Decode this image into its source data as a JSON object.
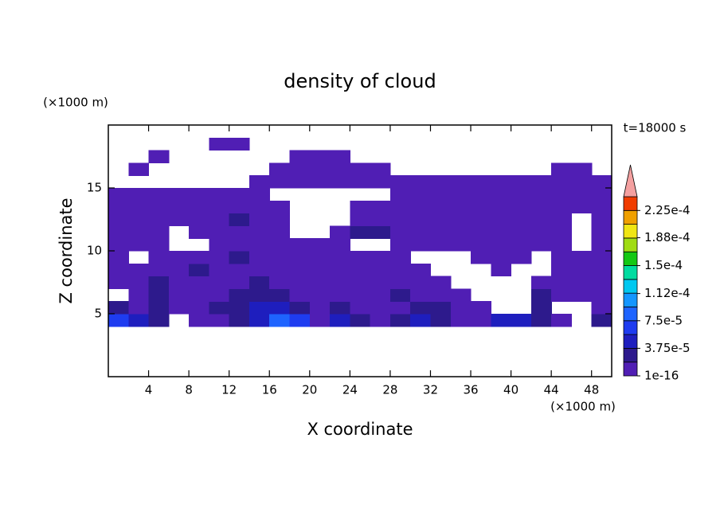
{
  "chart_data": {
    "type": "contour",
    "title": "density of cloud",
    "x_label": "X coordinate",
    "y_label": "Z coordinate",
    "x_unit": "(×1000 m)",
    "y_unit": "(×1000 m)",
    "annotation": "t=18000 s",
    "xlim": [
      0,
      50
    ],
    "ylim": [
      0,
      20
    ],
    "xticks": [
      4,
      8,
      12,
      16,
      20,
      24,
      28,
      32,
      36,
      40,
      44,
      48
    ],
    "yticks": [
      5,
      10,
      15
    ],
    "xbins": [
      0,
      2,
      4,
      6,
      8,
      10,
      12,
      14,
      16,
      18,
      20,
      22,
      24,
      26,
      28,
      30,
      32,
      34,
      36,
      38,
      40,
      42,
      44,
      46,
      48,
      50
    ],
    "ybins": [
      4,
      5,
      6,
      7,
      8,
      9,
      10,
      11,
      12,
      13,
      14,
      15,
      16,
      17,
      18,
      19,
      20
    ],
    "values": [
      [
        6e-05,
        5e-05,
        3e-05,
        null,
        1e-05,
        1e-05,
        2e-05,
        5e-05,
        9e-05,
        6e-05,
        1e-05,
        4e-05,
        3e-05,
        1e-05,
        2e-05,
        4e-05,
        3e-05,
        1e-05,
        1e-05,
        5e-05,
        4e-05,
        2e-05,
        1e-05,
        null,
        3e-05
      ],
      [
        2e-05,
        1e-05,
        2e-05,
        1e-05,
        1e-05,
        2e-05,
        3e-05,
        4e-05,
        4e-05,
        3e-05,
        1e-05,
        2.5e-05,
        1e-05,
        1e-05,
        1e-05,
        2.5e-05,
        2.5e-05,
        1e-05,
        1e-05,
        null,
        null,
        2e-05,
        null,
        null,
        1e-05
      ],
      [
        null,
        1e-05,
        2e-05,
        1e-05,
        1e-05,
        1e-05,
        3e-05,
        3e-05,
        2e-05,
        1e-05,
        1e-05,
        1e-05,
        1e-05,
        1e-05,
        2e-05,
        1e-05,
        1e-05,
        1e-05,
        null,
        null,
        null,
        2e-05,
        1e-05,
        1e-05,
        1e-05
      ],
      [
        1e-05,
        1e-05,
        2.5e-05,
        1e-05,
        1e-05,
        1e-05,
        1e-05,
        2.5e-05,
        1e-05,
        1e-05,
        1e-05,
        1e-05,
        1e-05,
        1e-05,
        1e-05,
        1e-05,
        1e-05,
        null,
        null,
        null,
        null,
        1e-05,
        1e-05,
        1e-05,
        1e-05
      ],
      [
        1e-05,
        1e-05,
        1e-05,
        1e-05,
        2e-05,
        1e-05,
        1e-05,
        1e-05,
        1e-05,
        1e-05,
        1e-05,
        1e-05,
        1e-05,
        1e-05,
        1e-05,
        1e-05,
        null,
        null,
        null,
        1e-05,
        null,
        null,
        1e-05,
        1e-05,
        1e-05
      ],
      [
        1e-05,
        null,
        1e-05,
        1e-05,
        1e-05,
        1e-05,
        2e-05,
        1e-05,
        1e-05,
        1e-05,
        1e-05,
        1e-05,
        1e-05,
        1e-05,
        1e-05,
        null,
        null,
        null,
        1e-05,
        1e-05,
        1e-05,
        null,
        1e-05,
        1e-05,
        1e-05
      ],
      [
        1e-05,
        1e-05,
        1e-05,
        null,
        null,
        1e-05,
        1e-05,
        1e-05,
        1e-05,
        1e-05,
        1e-05,
        1e-05,
        null,
        null,
        1e-05,
        1e-05,
        1e-05,
        1e-05,
        1e-05,
        1e-05,
        1e-05,
        1e-05,
        1e-05,
        null,
        1e-05
      ],
      [
        1e-05,
        1e-05,
        1e-05,
        null,
        1e-05,
        1e-05,
        1e-05,
        1e-05,
        1e-05,
        null,
        null,
        1e-05,
        2.5e-05,
        2.5e-05,
        1e-05,
        1e-05,
        1e-05,
        1e-05,
        1e-05,
        1e-05,
        1e-05,
        1e-05,
        1e-05,
        null,
        1e-05
      ],
      [
        1e-05,
        1e-05,
        1e-05,
        1e-05,
        1e-05,
        1e-05,
        2e-05,
        1e-05,
        1e-05,
        null,
        null,
        null,
        1e-05,
        1e-05,
        1e-05,
        1e-05,
        1e-05,
        1e-05,
        1e-05,
        1e-05,
        1e-05,
        1e-05,
        1e-05,
        null,
        1e-05
      ],
      [
        1e-05,
        1e-05,
        1e-05,
        1e-05,
        1e-05,
        1e-05,
        1e-05,
        1e-05,
        1e-05,
        null,
        null,
        null,
        1e-05,
        1e-05,
        1e-05,
        1e-05,
        1e-05,
        1e-05,
        1e-05,
        1e-05,
        1e-05,
        1e-05,
        1e-05,
        1e-05,
        1e-05
      ],
      [
        1e-05,
        1e-05,
        1e-05,
        1e-05,
        1e-05,
        1e-05,
        1e-05,
        1e-05,
        null,
        null,
        null,
        null,
        null,
        null,
        1e-05,
        1e-05,
        1e-05,
        1e-05,
        1e-05,
        1e-05,
        1e-05,
        1e-05,
        1e-05,
        1e-05,
        1e-05
      ],
      [
        null,
        null,
        null,
        null,
        null,
        null,
        null,
        1e-05,
        1e-05,
        1e-05,
        1e-05,
        1e-05,
        1e-05,
        1e-05,
        1e-05,
        1e-05,
        1e-05,
        1e-05,
        1e-05,
        1e-05,
        1e-05,
        1e-05,
        1e-05,
        1e-05,
        1e-05
      ],
      [
        null,
        1e-05,
        null,
        null,
        null,
        null,
        null,
        null,
        1e-05,
        1e-05,
        1e-05,
        1e-05,
        1e-05,
        1e-05,
        null,
        null,
        null,
        null,
        null,
        null,
        null,
        null,
        1e-05,
        1e-05,
        null
      ],
      [
        null,
        null,
        1e-05,
        null,
        null,
        null,
        null,
        null,
        null,
        1e-05,
        1e-05,
        1e-05,
        null,
        null,
        null,
        null,
        null,
        null,
        null,
        null,
        null,
        null,
        null,
        null,
        null
      ],
      [
        null,
        null,
        null,
        null,
        null,
        1e-05,
        1e-05,
        null,
        null,
        null,
        null,
        null,
        null,
        null,
        null,
        null,
        null,
        null,
        null,
        null,
        null,
        null,
        null,
        null,
        null
      ],
      [
        null,
        null,
        null,
        null,
        null,
        null,
        null,
        null,
        null,
        null,
        null,
        null,
        null,
        null,
        null,
        null,
        null,
        null,
        null,
        null,
        null,
        null,
        null,
        null,
        null
      ]
    ],
    "colorbar": {
      "levels": [
        1e-16,
        1.875e-05,
        3.75e-05,
        5.625e-05,
        7.5e-05,
        9.375e-05,
        0.0001125,
        0.00013125,
        0.00015,
        0.00016875,
        0.0001875,
        0.00020625,
        0.000225,
        0.00024375
      ],
      "colors": [
        "#501eb4",
        "#2d1a8c",
        "#1e1ebe",
        "#1e3cf0",
        "#1e64ff",
        "#1496ff",
        "#00c8f0",
        "#00dca0",
        "#14c814",
        "#a0dc14",
        "#f0e614",
        "#f0a000",
        "#f03c00"
      ],
      "extend_color": "#f4a0a0",
      "ticks": [
        {
          "value": 1e-16,
          "label": "1e-16"
        },
        {
          "value": 3.75e-05,
          "label": "3.75e-5"
        },
        {
          "value": 7.5e-05,
          "label": "7.5e-5"
        },
        {
          "value": 0.000112,
          "label": "1.12e-4"
        },
        {
          "value": 0.00015,
          "label": "1.5e-4"
        },
        {
          "value": 0.000188,
          "label": "1.88e-4"
        },
        {
          "value": 0.000225,
          "label": "2.25e-4"
        }
      ]
    }
  }
}
